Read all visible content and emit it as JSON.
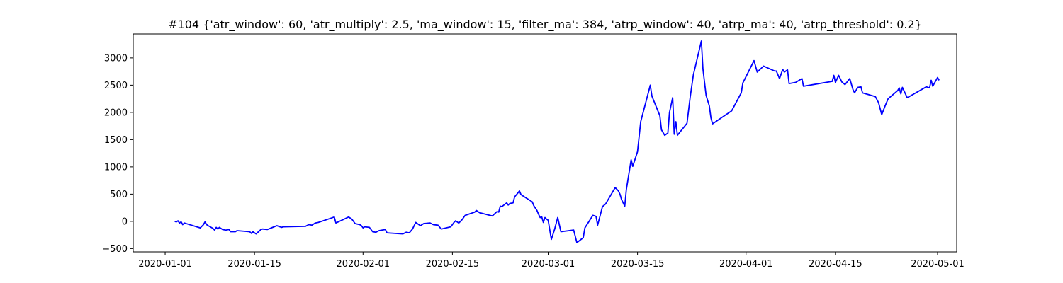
{
  "chart_data": {
    "type": "line",
    "title": "#104 {'atr_window': 60, 'atr_multiply': 2.5, 'ma_window': 15, 'filter_ma': 384, 'atrp_window': 40, 'atrp_ma': 40, 'atrp_threshold': 0.2}",
    "xlabel": "",
    "ylabel": "",
    "x_axis": "date",
    "xlim": [
      "2019-12-27",
      "2020-05-04"
    ],
    "ylim": [
      -560,
      3440
    ],
    "grid": false,
    "legend": "none",
    "line_color": "#0000ff",
    "x_ticks": [
      {
        "date": "2020-01-01",
        "label": "2020-01-01"
      },
      {
        "date": "2020-01-15",
        "label": "2020-01-15"
      },
      {
        "date": "2020-02-01",
        "label": "2020-02-01"
      },
      {
        "date": "2020-02-15",
        "label": "2020-02-15"
      },
      {
        "date": "2020-03-01",
        "label": "2020-03-01"
      },
      {
        "date": "2020-03-15",
        "label": "2020-03-15"
      },
      {
        "date": "2020-04-01",
        "label": "2020-04-01"
      },
      {
        "date": "2020-04-15",
        "label": "2020-04-15"
      },
      {
        "date": "2020-05-01",
        "label": "2020-05-01"
      }
    ],
    "y_ticks": [
      {
        "value": -500,
        "label": "−500"
      },
      {
        "value": 0,
        "label": "0"
      },
      {
        "value": 500,
        "label": "500"
      },
      {
        "value": 1000,
        "label": "1000"
      },
      {
        "value": 1500,
        "label": "1500"
      },
      {
        "value": 2000,
        "label": "2000"
      },
      {
        "value": 2500,
        "label": "2500"
      },
      {
        "value": 3000,
        "label": "3000"
      }
    ],
    "series": [
      {
        "points": [
          [
            "2020-01-02 12:00",
            0
          ],
          [
            "2020-01-02 18:00",
            -10
          ],
          [
            "2020-01-03 00:00",
            10
          ],
          [
            "2020-01-03 06:00",
            -30
          ],
          [
            "2020-01-03 12:00",
            -10
          ],
          [
            "2020-01-03 18:00",
            -60
          ],
          [
            "2020-01-04 00:00",
            -30
          ],
          [
            "2020-01-06 12:00",
            -120
          ],
          [
            "2020-01-07 00:00",
            -60
          ],
          [
            "2020-01-07 06:00",
            -10
          ],
          [
            "2020-01-07 12:00",
            -60
          ],
          [
            "2020-01-07 18:00",
            -80
          ],
          [
            "2020-01-08 12:00",
            -130
          ],
          [
            "2020-01-08 18:00",
            -160
          ],
          [
            "2020-01-09 00:00",
            -110
          ],
          [
            "2020-01-09 06:00",
            -140
          ],
          [
            "2020-01-09 12:00",
            -110
          ],
          [
            "2020-01-10 00:00",
            -150
          ],
          [
            "2020-01-10 12:00",
            -160
          ],
          [
            "2020-01-11 00:00",
            -150
          ],
          [
            "2020-01-11 06:00",
            -190
          ],
          [
            "2020-01-11 12:00",
            -190
          ],
          [
            "2020-01-12 00:00",
            -190
          ],
          [
            "2020-01-12 06:00",
            -170
          ],
          [
            "2020-01-14 06:00",
            -190
          ],
          [
            "2020-01-14 12:00",
            -220
          ],
          [
            "2020-01-14 18:00",
            -190
          ],
          [
            "2020-01-15 06:00",
            -230
          ],
          [
            "2020-01-16 00:00",
            -150
          ],
          [
            "2020-01-16 06:00",
            -140
          ],
          [
            "2020-01-17 00:00",
            -150
          ],
          [
            "2020-01-18 12:00",
            -80
          ],
          [
            "2020-01-19 06:00",
            -110
          ],
          [
            "2020-01-19 12:00",
            -100
          ],
          [
            "2020-01-23 00:00",
            -90
          ],
          [
            "2020-01-23 12:00",
            -60
          ],
          [
            "2020-01-24 00:00",
            -70
          ],
          [
            "2020-01-24 12:00",
            -30
          ],
          [
            "2020-01-25 00:00",
            -20
          ],
          [
            "2020-01-27 00:00",
            60
          ],
          [
            "2020-01-27 12:00",
            80
          ],
          [
            "2020-01-27 18:00",
            -30
          ],
          [
            "2020-01-29 18:00",
            80
          ],
          [
            "2020-01-30 06:00",
            40
          ],
          [
            "2020-01-30 12:00",
            0
          ],
          [
            "2020-01-30 18:00",
            -40
          ],
          [
            "2020-01-31 12:00",
            -60
          ],
          [
            "2020-01-31 18:00",
            -80
          ],
          [
            "2020-02-01 00:00",
            -120
          ],
          [
            "2020-02-01 06:00",
            -100
          ],
          [
            "2020-02-02 00:00",
            -110
          ],
          [
            "2020-02-02 12:00",
            -190
          ],
          [
            "2020-02-03 00:00",
            -200
          ],
          [
            "2020-02-03 12:00",
            -170
          ],
          [
            "2020-02-04 12:00",
            -150
          ],
          [
            "2020-02-04 18:00",
            -210
          ],
          [
            "2020-02-07 06:00",
            -230
          ],
          [
            "2020-02-07 18:00",
            -200
          ],
          [
            "2020-02-08 06:00",
            -210
          ],
          [
            "2020-02-08 18:00",
            -140
          ],
          [
            "2020-02-09 06:00",
            -20
          ],
          [
            "2020-02-09 18:00",
            -60
          ],
          [
            "2020-02-10 00:00",
            -80
          ],
          [
            "2020-02-10 12:00",
            -40
          ],
          [
            "2020-02-11 12:00",
            -30
          ],
          [
            "2020-02-12 00:00",
            -60
          ],
          [
            "2020-02-12 18:00",
            -70
          ],
          [
            "2020-02-13 06:00",
            -140
          ],
          [
            "2020-02-14 18:00",
            -100
          ],
          [
            "2020-02-15 06:00",
            -20
          ],
          [
            "2020-02-15 12:00",
            10
          ],
          [
            "2020-02-16 00:00",
            -30
          ],
          [
            "2020-02-16 12:00",
            30
          ],
          [
            "2020-02-17 00:00",
            110
          ],
          [
            "2020-02-17 12:00",
            130
          ],
          [
            "2020-02-18 00:00",
            150
          ],
          [
            "2020-02-18 12:00",
            170
          ],
          [
            "2020-02-18 18:00",
            200
          ],
          [
            "2020-02-19 06:00",
            160
          ],
          [
            "2020-02-21 06:00",
            100
          ],
          [
            "2020-02-22 00:00",
            180
          ],
          [
            "2020-02-22 06:00",
            170
          ],
          [
            "2020-02-22 12:00",
            280
          ],
          [
            "2020-02-22 18:00",
            270
          ],
          [
            "2020-02-23 12:00",
            340
          ],
          [
            "2020-02-23 18:00",
            300
          ],
          [
            "2020-02-24 00:00",
            330
          ],
          [
            "2020-02-24 12:00",
            340
          ],
          [
            "2020-02-24 18:00",
            450
          ],
          [
            "2020-02-25 06:00",
            520
          ],
          [
            "2020-02-25 12:00",
            560
          ],
          [
            "2020-02-25 18:00",
            490
          ],
          [
            "2020-02-27 12:00",
            360
          ],
          [
            "2020-02-27 18:00",
            290
          ],
          [
            "2020-02-28 06:00",
            200
          ],
          [
            "2020-02-28 12:00",
            130
          ],
          [
            "2020-02-28 18:00",
            70
          ],
          [
            "2020-02-29 00:00",
            80
          ],
          [
            "2020-02-29 06:00",
            -20
          ],
          [
            "2020-02-29 12:00",
            70
          ],
          [
            "2020-02-29 18:00",
            40
          ],
          [
            "2020-03-01 00:00",
            20
          ],
          [
            "2020-03-01 12:00",
            -330
          ],
          [
            "2020-03-02 00:00",
            -150
          ],
          [
            "2020-03-02 12:00",
            70
          ],
          [
            "2020-03-03 00:00",
            -190
          ],
          [
            "2020-03-05 00:00",
            -160
          ],
          [
            "2020-03-05 12:00",
            -390
          ],
          [
            "2020-03-06 12:00",
            -300
          ],
          [
            "2020-03-06 18:00",
            -120
          ],
          [
            "2020-03-08 00:00",
            110
          ],
          [
            "2020-03-08 12:00",
            90
          ],
          [
            "2020-03-08 18:00",
            -70
          ],
          [
            "2020-03-09 12:00",
            270
          ],
          [
            "2020-03-10 00:00",
            320
          ],
          [
            "2020-03-11 12:00",
            620
          ],
          [
            "2020-03-12 00:00",
            560
          ],
          [
            "2020-03-12 06:00",
            500
          ],
          [
            "2020-03-12 12:00",
            400
          ],
          [
            "2020-03-13 00:00",
            280
          ],
          [
            "2020-03-13 06:00",
            580
          ],
          [
            "2020-03-14 00:00",
            1130
          ],
          [
            "2020-03-14 06:00",
            1010
          ],
          [
            "2020-03-15 00:00",
            1280
          ],
          [
            "2020-03-15 12:00",
            1830
          ],
          [
            "2020-03-17 00:00",
            2500
          ],
          [
            "2020-03-17 06:00",
            2300
          ],
          [
            "2020-03-18 12:00",
            1940
          ],
          [
            "2020-03-18 18:00",
            1680
          ],
          [
            "2020-03-19 06:00",
            1580
          ],
          [
            "2020-03-19 18:00",
            1620
          ],
          [
            "2020-03-20 00:00",
            2000
          ],
          [
            "2020-03-20 12:00",
            2270
          ],
          [
            "2020-03-20 18:00",
            1600
          ],
          [
            "2020-03-21 00:00",
            1830
          ],
          [
            "2020-03-21 06:00",
            1580
          ],
          [
            "2020-03-22 18:00",
            1800
          ],
          [
            "2020-03-23 06:00",
            2280
          ],
          [
            "2020-03-23 18:00",
            2690
          ],
          [
            "2020-03-25 00:00",
            3310
          ],
          [
            "2020-03-25 06:00",
            2800
          ],
          [
            "2020-03-25 18:00",
            2310
          ],
          [
            "2020-03-26 06:00",
            2120
          ],
          [
            "2020-03-26 12:00",
            1900
          ],
          [
            "2020-03-26 18:00",
            1790
          ],
          [
            "2020-03-29 18:00",
            2030
          ],
          [
            "2020-03-31 06:00",
            2360
          ],
          [
            "2020-03-31 12:00",
            2540
          ],
          [
            "2020-04-02 06:00",
            2950
          ],
          [
            "2020-04-02 18:00",
            2740
          ],
          [
            "2020-04-03 18:00",
            2850
          ],
          [
            "2020-04-05 12:00",
            2760
          ],
          [
            "2020-04-05 18:00",
            2760
          ],
          [
            "2020-04-06 06:00",
            2620
          ],
          [
            "2020-04-06 18:00",
            2790
          ],
          [
            "2020-04-07 00:00",
            2740
          ],
          [
            "2020-04-07 12:00",
            2780
          ],
          [
            "2020-04-07 18:00",
            2530
          ],
          [
            "2020-04-08 18:00",
            2550
          ],
          [
            "2020-04-09 18:00",
            2620
          ],
          [
            "2020-04-10 00:00",
            2480
          ],
          [
            "2020-04-14 12:00",
            2570
          ],
          [
            "2020-04-14 18:00",
            2680
          ],
          [
            "2020-04-15 00:00",
            2550
          ],
          [
            "2020-04-15 12:00",
            2680
          ],
          [
            "2020-04-16 00:00",
            2560
          ],
          [
            "2020-04-16 12:00",
            2510
          ],
          [
            "2020-04-17 06:00",
            2620
          ],
          [
            "2020-04-17 18:00",
            2420
          ],
          [
            "2020-04-18 00:00",
            2360
          ],
          [
            "2020-04-18 12:00",
            2460
          ],
          [
            "2020-04-19 00:00",
            2470
          ],
          [
            "2020-04-19 06:00",
            2360
          ],
          [
            "2020-04-21 06:00",
            2290
          ],
          [
            "2020-04-21 18:00",
            2180
          ],
          [
            "2020-04-22 06:00",
            1960
          ],
          [
            "2020-04-22 18:00",
            2110
          ],
          [
            "2020-04-23 06:00",
            2250
          ],
          [
            "2020-04-24 18:00",
            2400
          ],
          [
            "2020-04-25 00:00",
            2450
          ],
          [
            "2020-04-25 06:00",
            2340
          ],
          [
            "2020-04-25 12:00",
            2460
          ],
          [
            "2020-04-26 06:00",
            2270
          ],
          [
            "2020-04-29 06:00",
            2470
          ],
          [
            "2020-04-29 18:00",
            2450
          ],
          [
            "2020-04-30 00:00",
            2590
          ],
          [
            "2020-04-30 06:00",
            2480
          ],
          [
            "2020-05-01 00:00",
            2640
          ],
          [
            "2020-05-01 06:00",
            2590
          ]
        ]
      }
    ]
  }
}
